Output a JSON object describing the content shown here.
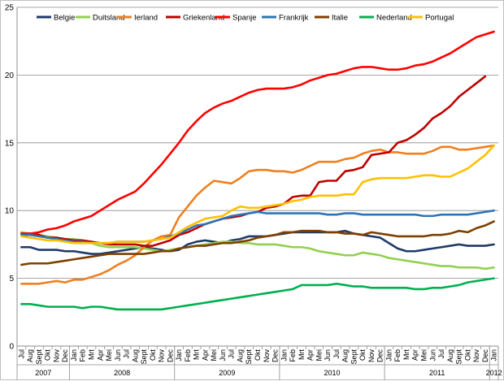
{
  "chart_data": {
    "type": "line",
    "ylim": [
      0,
      25
    ],
    "yticks": [
      0,
      5,
      10,
      15,
      20,
      25
    ],
    "legend_position": "top",
    "grid": "horizontal",
    "months": [
      "Jul",
      "Aug",
      "Sept",
      "Okt",
      "Nov",
      "Dec",
      "Jan",
      "Feb",
      "Mrt",
      "Apr",
      "Mei",
      "Jun",
      "Jul",
      "Aug",
      "Sept",
      "Okt",
      "Nov",
      "Dec",
      "Jan",
      "Feb",
      "Mrt",
      "Apr",
      "Mei",
      "Jun",
      "Jul",
      "Aug",
      "Sept",
      "Okt",
      "Nov",
      "Dec",
      "Jan",
      "Feb",
      "Mrt",
      "Apr",
      "Mei",
      "Jun",
      "Jul",
      "Aug",
      "Sept",
      "Okt",
      "Nov",
      "Dec",
      "Jan",
      "Feb",
      "Mrt",
      "Apr",
      "Mei",
      "Jun",
      "Jul",
      "Aug",
      "Sept",
      "Okt",
      "Nov",
      "Dec",
      "Jan"
    ],
    "years": [
      {
        "label": "2007",
        "start": 0,
        "end": 5
      },
      {
        "label": "2008",
        "start": 6,
        "end": 17
      },
      {
        "label": "2009",
        "start": 18,
        "end": 29
      },
      {
        "label": "2010",
        "start": 30,
        "end": 41
      },
      {
        "label": "2011",
        "start": 42,
        "end": 53
      },
      {
        "label": "2012",
        "start": 54,
        "end": 54
      }
    ],
    "series": [
      {
        "name": "Belgie",
        "color": "#1f3a68",
        "values": [
          7.3,
          7.3,
          7.1,
          7.1,
          7.1,
          7.0,
          7.0,
          6.9,
          6.8,
          6.8,
          6.9,
          7.0,
          7.1,
          7.2,
          7.3,
          7.2,
          7.1,
          7.0,
          7.1,
          7.5,
          7.7,
          7.8,
          7.7,
          7.6,
          7.8,
          7.9,
          8.1,
          8.1,
          8.1,
          8.2,
          8.3,
          8.4,
          8.4,
          8.4,
          8.4,
          8.4,
          8.4,
          8.5,
          8.3,
          8.2,
          8.1,
          8.0,
          7.6,
          7.2,
          7.0,
          7.0,
          7.1,
          7.2,
          7.3,
          7.4,
          7.5,
          7.4,
          7.4,
          7.4,
          7.5
        ]
      },
      {
        "name": "Duitsland",
        "color": "#92d050",
        "values": [
          8.4,
          8.3,
          8.2,
          8.1,
          8.0,
          7.9,
          7.9,
          7.8,
          7.6,
          7.4,
          7.3,
          7.3,
          7.3,
          7.3,
          7.2,
          7.1,
          7.0,
          7.1,
          7.2,
          7.3,
          7.4,
          7.5,
          7.6,
          7.7,
          7.7,
          7.6,
          7.6,
          7.5,
          7.5,
          7.5,
          7.4,
          7.3,
          7.3,
          7.2,
          7.0,
          6.9,
          6.8,
          6.7,
          6.7,
          6.9,
          6.8,
          6.7,
          6.5,
          6.4,
          6.3,
          6.2,
          6.1,
          6.0,
          5.9,
          5.9,
          5.8,
          5.8,
          5.8,
          5.7,
          5.8
        ]
      },
      {
        "name": "Ierland",
        "color": "#f07f1e",
        "values": [
          4.6,
          4.6,
          4.6,
          4.7,
          4.8,
          4.7,
          4.9,
          4.9,
          5.1,
          5.3,
          5.6,
          6.0,
          6.3,
          6.7,
          7.3,
          7.8,
          8.1,
          8.2,
          9.5,
          10.3,
          11.1,
          11.7,
          12.2,
          12.1,
          12.0,
          12.4,
          12.9,
          13.0,
          13.0,
          12.9,
          12.9,
          12.8,
          13.0,
          13.3,
          13.6,
          13.6,
          13.6,
          13.8,
          13.9,
          14.2,
          14.4,
          14.5,
          14.3,
          14.3,
          14.2,
          14.2,
          14.2,
          14.4,
          14.7,
          14.7,
          14.5,
          14.5,
          14.6,
          14.7,
          14.8
        ]
      },
      {
        "name": "Griekenland",
        "color": "#c00000",
        "values": [
          8.3,
          8.3,
          8.2,
          8.0,
          8.0,
          7.9,
          7.8,
          7.8,
          7.7,
          7.6,
          7.5,
          7.5,
          7.5,
          7.5,
          7.4,
          7.4,
          7.6,
          7.8,
          8.2,
          8.4,
          8.7,
          9.0,
          9.2,
          9.4,
          9.5,
          9.6,
          9.8,
          9.9,
          10.2,
          10.3,
          10.5,
          11.0,
          11.1,
          11.1,
          12.1,
          12.2,
          12.2,
          12.9,
          13.0,
          13.2,
          14.1,
          14.2,
          14.3,
          15.0,
          15.2,
          15.6,
          16.1,
          16.8,
          17.2,
          17.7,
          18.4,
          18.9,
          19.4,
          19.9,
          null
        ]
      },
      {
        "name": "Spanje",
        "color": "#ff0000",
        "values": [
          8.3,
          8.3,
          8.4,
          8.6,
          8.7,
          8.9,
          9.2,
          9.4,
          9.6,
          10.0,
          10.4,
          10.8,
          11.1,
          11.4,
          12.0,
          12.7,
          13.4,
          14.2,
          15.0,
          15.9,
          16.6,
          17.2,
          17.6,
          17.9,
          18.1,
          18.4,
          18.7,
          18.9,
          19.0,
          19.0,
          19.0,
          19.1,
          19.3,
          19.6,
          19.8,
          20.0,
          20.1,
          20.3,
          20.5,
          20.6,
          20.6,
          20.5,
          20.4,
          20.4,
          20.5,
          20.7,
          20.8,
          21.0,
          21.3,
          21.6,
          22.0,
          22.4,
          22.8,
          23.0,
          23.2
        ]
      },
      {
        "name": "Frankrijk",
        "color": "#2e75b6",
        "values": [
          8.2,
          8.2,
          8.1,
          8.0,
          7.9,
          7.8,
          7.7,
          7.7,
          7.6,
          7.6,
          7.6,
          7.7,
          7.7,
          7.7,
          7.7,
          7.8,
          7.9,
          8.1,
          8.3,
          8.6,
          8.9,
          9.0,
          9.2,
          9.4,
          9.6,
          9.7,
          9.8,
          9.9,
          9.8,
          9.8,
          9.8,
          9.8,
          9.8,
          9.8,
          9.8,
          9.7,
          9.7,
          9.8,
          9.8,
          9.7,
          9.7,
          9.7,
          9.7,
          9.7,
          9.7,
          9.7,
          9.6,
          9.6,
          9.7,
          9.7,
          9.7,
          9.7,
          9.8,
          9.9,
          10.0
        ]
      },
      {
        "name": "Italie",
        "color": "#7f3f00",
        "values": [
          6.0,
          6.1,
          6.1,
          6.1,
          6.2,
          6.3,
          6.4,
          6.5,
          6.6,
          6.7,
          6.8,
          6.8,
          6.8,
          6.8,
          6.8,
          6.9,
          7.0,
          7.0,
          7.2,
          7.3,
          7.4,
          7.4,
          7.5,
          7.6,
          7.6,
          7.7,
          7.8,
          8.0,
          8.1,
          8.2,
          8.4,
          8.4,
          8.5,
          8.5,
          8.5,
          8.4,
          8.4,
          8.3,
          8.3,
          8.2,
          8.4,
          8.3,
          8.2,
          8.1,
          8.1,
          8.1,
          8.1,
          8.2,
          8.2,
          8.3,
          8.5,
          8.4,
          8.7,
          8.9,
          9.2
        ]
      },
      {
        "name": "Nederland",
        "color": "#00b050",
        "values": [
          3.1,
          3.1,
          3.0,
          2.9,
          2.9,
          2.9,
          2.9,
          2.8,
          2.9,
          2.9,
          2.8,
          2.7,
          2.7,
          2.7,
          2.7,
          2.7,
          2.7,
          2.8,
          2.9,
          3.0,
          3.1,
          3.2,
          3.3,
          3.4,
          3.5,
          3.6,
          3.7,
          3.8,
          3.9,
          4.0,
          4.1,
          4.2,
          4.5,
          4.5,
          4.5,
          4.5,
          4.6,
          4.5,
          4.4,
          4.4,
          4.3,
          4.3,
          4.3,
          4.3,
          4.3,
          4.2,
          4.2,
          4.3,
          4.3,
          4.4,
          4.5,
          4.7,
          4.8,
          4.9,
          5.0
        ]
      },
      {
        "name": "Portugal",
        "color": "#ffc000",
        "values": [
          8.1,
          8.0,
          7.9,
          7.8,
          7.8,
          7.7,
          7.6,
          7.6,
          7.6,
          7.6,
          7.6,
          7.7,
          7.7,
          7.7,
          7.7,
          7.8,
          7.9,
          8.0,
          8.4,
          8.8,
          9.1,
          9.4,
          9.5,
          9.6,
          10.0,
          10.3,
          10.2,
          10.2,
          10.3,
          10.4,
          10.5,
          10.7,
          10.8,
          11.0,
          11.1,
          11.1,
          11.1,
          11.2,
          11.2,
          12.1,
          12.3,
          12.4,
          12.4,
          12.4,
          12.4,
          12.5,
          12.6,
          12.6,
          12.5,
          12.5,
          12.8,
          13.1,
          13.6,
          14.1,
          14.8
        ]
      }
    ]
  }
}
